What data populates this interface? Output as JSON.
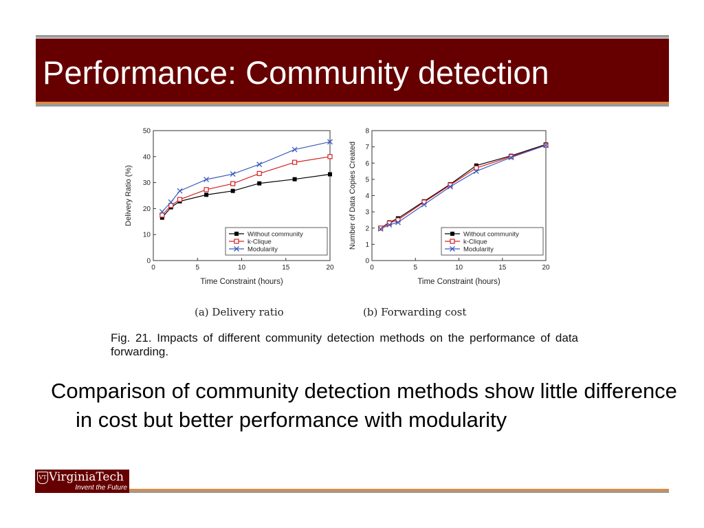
{
  "slide": {
    "title": "Performance: Community detection",
    "body": "Comparison of community detection methods show little difference in cost but better performance with modularity",
    "figure_caption": "Fig. 21. Impacts of different community detection methods on the performance of data forwarding.",
    "logo_name": "VirginiaTech",
    "logo_tagline": "Invent the Future"
  },
  "colors": {
    "title_bar": "#660000",
    "accent": "#e08a3c",
    "without": "#000000",
    "kclique": "#d42020",
    "modularity": "#3b5bbd"
  },
  "chart_data": [
    {
      "type": "line",
      "caption": "(a) Delivery ratio",
      "xlabel": "Time Constraint (hours)",
      "ylabel": "Delivery Ratio (%)",
      "xlim": [
        0,
        20
      ],
      "ylim": [
        0,
        50
      ],
      "xticks": [
        0,
        5,
        10,
        15,
        20
      ],
      "yticks": [
        0,
        10,
        20,
        30,
        40,
        50
      ],
      "grid": false,
      "legend_position": "bottom-right",
      "series": [
        {
          "name": "Without community",
          "marker": "square",
          "x": [
            1,
            2,
            3,
            6,
            9,
            12,
            16,
            20
          ],
          "values": [
            16.5,
            20.5,
            22.8,
            25.3,
            26.8,
            29.7,
            31.3,
            33.2
          ]
        },
        {
          "name": "k-Clique",
          "marker": "open-square",
          "x": [
            1,
            2,
            3,
            6,
            9,
            12,
            16,
            20
          ],
          "values": [
            17.5,
            21.2,
            23.5,
            27.3,
            29.6,
            33.5,
            37.8,
            40.0
          ]
        },
        {
          "name": "Modularity",
          "marker": "x",
          "x": [
            1,
            2,
            3,
            6,
            9,
            12,
            16,
            20
          ],
          "values": [
            18.8,
            22.5,
            26.8,
            31.2,
            33.3,
            37.0,
            42.7,
            45.7
          ]
        }
      ]
    },
    {
      "type": "line",
      "caption": "(b) Forwarding cost",
      "xlabel": "Time Constraint (hours)",
      "ylabel": "Number of Data Copies Created",
      "xlim": [
        0,
        20
      ],
      "ylim": [
        0,
        8
      ],
      "xticks": [
        0,
        5,
        10,
        15,
        20
      ],
      "yticks": [
        0,
        1,
        2,
        3,
        4,
        5,
        6,
        7,
        8
      ],
      "grid": false,
      "legend_position": "bottom-right",
      "series": [
        {
          "name": "Without community",
          "marker": "square",
          "x": [
            1,
            2,
            3,
            6,
            9,
            12,
            16,
            20
          ],
          "values": [
            2.0,
            2.35,
            2.6,
            3.65,
            4.7,
            5.85,
            6.45,
            7.15
          ]
        },
        {
          "name": "k-Clique",
          "marker": "open-square",
          "x": [
            1,
            2,
            3,
            6,
            9,
            12,
            16,
            20
          ],
          "values": [
            2.0,
            2.3,
            2.5,
            3.6,
            4.65,
            5.7,
            6.4,
            7.1
          ]
        },
        {
          "name": "Modularity",
          "marker": "x",
          "x": [
            1,
            2,
            3,
            6,
            9,
            12,
            16,
            20
          ],
          "values": [
            1.95,
            2.2,
            2.35,
            3.45,
            4.55,
            5.5,
            6.35,
            7.1
          ]
        }
      ]
    }
  ]
}
